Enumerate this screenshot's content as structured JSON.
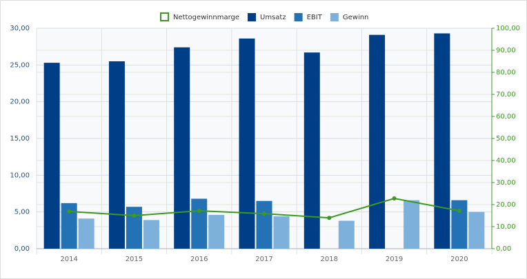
{
  "chart_data": {
    "type": "bar",
    "categories": [
      "2014",
      "2015",
      "2016",
      "2017",
      "2018",
      "2019",
      "2020"
    ],
    "series": [
      {
        "name": "Nettogewinnmarge",
        "type": "line",
        "axis": "y2",
        "color": "#3a9a1e",
        "values": [
          16.9,
          15.0,
          17.2,
          15.9,
          14.0,
          22.8,
          17.2
        ]
      },
      {
        "name": "Umsatz",
        "color": "#003f87",
        "values": [
          25.3,
          25.5,
          27.4,
          28.6,
          26.7,
          29.1,
          29.3
        ]
      },
      {
        "name": "EBIT",
        "color": "#2372b5",
        "values": [
          6.2,
          5.7,
          6.8,
          6.5,
          null,
          null,
          6.6
        ]
      },
      {
        "name": "Gewinn",
        "color": "#7eb0dc",
        "values": [
          4.1,
          3.9,
          4.6,
          4.4,
          3.8,
          6.6,
          5.0
        ]
      }
    ],
    "ylim": [
      0,
      30
    ],
    "yticks": [
      {
        "value": 0,
        "label": "0,00"
      },
      {
        "value": 5,
        "label": "5,00"
      },
      {
        "value": 10,
        "label": "10,00"
      },
      {
        "value": 15,
        "label": "15,00"
      },
      {
        "value": 20,
        "label": "20,00"
      },
      {
        "value": 25,
        "label": "25,00"
      },
      {
        "value": 30,
        "label": "30,00"
      }
    ],
    "y2lim": [
      0,
      100
    ],
    "y2ticks": [
      {
        "value": 0,
        "label": "0,00"
      },
      {
        "value": 10,
        "label": "10,00"
      },
      {
        "value": 20,
        "label": "20,00"
      },
      {
        "value": 30,
        "label": "30,00"
      },
      {
        "value": 40,
        "label": "40,00"
      },
      {
        "value": 50,
        "label": "50,00"
      },
      {
        "value": 60,
        "label": "60,00"
      },
      {
        "value": 70,
        "label": "70,00"
      },
      {
        "value": 80,
        "label": "80,00"
      },
      {
        "value": 90,
        "label": "90,00"
      },
      {
        "value": 100,
        "label": "100,00"
      }
    ],
    "grid": true
  }
}
